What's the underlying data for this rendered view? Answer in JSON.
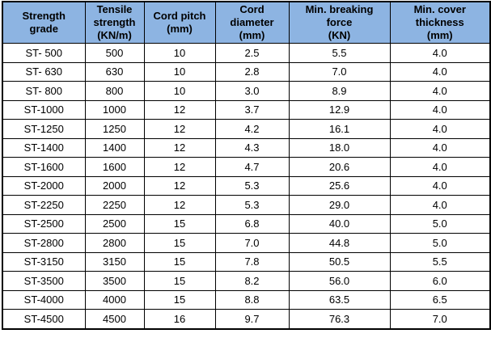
{
  "colors": {
    "header_bg": "#8DB4E2",
    "border": "#000000",
    "text": "#000000",
    "body_bg": "#FFFFFF"
  },
  "table": {
    "columns": [
      "Strength\ngrade",
      "Tensile\nstrength\n(KN/m)",
      "Cord pitch\n(mm)",
      "Cord\ndiameter\n(mm)",
      "Min. breaking\nforce\n(KN)",
      "Min. cover\nthickness\n(mm)"
    ],
    "rows": [
      [
        "ST- 500",
        "500",
        "10",
        "2.5",
        "5.5",
        "4.0"
      ],
      [
        "ST- 630",
        "630",
        "10",
        "2.8",
        "7.0",
        "4.0"
      ],
      [
        "ST- 800",
        "800",
        "10",
        "3.0",
        "8.9",
        "4.0"
      ],
      [
        "ST-1000",
        "1000",
        "12",
        "3.7",
        "12.9",
        "4.0"
      ],
      [
        "ST-1250",
        "1250",
        "12",
        "4.2",
        "16.1",
        "4.0"
      ],
      [
        "ST-1400",
        "1400",
        "12",
        "4.3",
        "18.0",
        "4.0"
      ],
      [
        "ST-1600",
        "1600",
        "12",
        "4.7",
        "20.6",
        "4.0"
      ],
      [
        "ST-2000",
        "2000",
        "12",
        "5.3",
        "25.6",
        "4.0"
      ],
      [
        "ST-2250",
        "2250",
        "12",
        "5.3",
        "29.0",
        "4.0"
      ],
      [
        "ST-2500",
        "2500",
        "15",
        "6.8",
        "40.0",
        "5.0"
      ],
      [
        "ST-2800",
        "2800",
        "15",
        "7.0",
        "44.8",
        "5.0"
      ],
      [
        "ST-3150",
        "3150",
        "15",
        "7.8",
        "50.5",
        "5.5"
      ],
      [
        "ST-3500",
        "3500",
        "15",
        "8.2",
        "56.0",
        "6.0"
      ],
      [
        "ST-4000",
        "4000",
        "15",
        "8.8",
        "63.5",
        "6.5"
      ],
      [
        "ST-4500",
        "4500",
        "16",
        "9.7",
        "76.3",
        "7.0"
      ]
    ]
  },
  "chart_data": {
    "type": "table",
    "title": "",
    "columns": [
      "Strength grade",
      "Tensile strength (KN/m)",
      "Cord pitch (mm)",
      "Cord diameter (mm)",
      "Min. breaking force (KN)",
      "Min. cover thickness (mm)"
    ],
    "rows": [
      [
        "ST- 500",
        500,
        10,
        2.5,
        5.5,
        4.0
      ],
      [
        "ST- 630",
        630,
        10,
        2.8,
        7.0,
        4.0
      ],
      [
        "ST- 800",
        800,
        10,
        3.0,
        8.9,
        4.0
      ],
      [
        "ST-1000",
        1000,
        12,
        3.7,
        12.9,
        4.0
      ],
      [
        "ST-1250",
        1250,
        12,
        4.2,
        16.1,
        4.0
      ],
      [
        "ST-1400",
        1400,
        12,
        4.3,
        18.0,
        4.0
      ],
      [
        "ST-1600",
        1600,
        12,
        4.7,
        20.6,
        4.0
      ],
      [
        "ST-2000",
        2000,
        12,
        5.3,
        25.6,
        4.0
      ],
      [
        "ST-2250",
        2250,
        12,
        5.3,
        29.0,
        4.0
      ],
      [
        "ST-2500",
        2500,
        15,
        6.8,
        40.0,
        5.0
      ],
      [
        "ST-2800",
        2800,
        15,
        7.0,
        44.8,
        5.0
      ],
      [
        "ST-3150",
        3150,
        15,
        7.8,
        50.5,
        5.5
      ],
      [
        "ST-3500",
        3500,
        15,
        8.2,
        56.0,
        6.0
      ],
      [
        "ST-4000",
        4000,
        15,
        8.8,
        63.5,
        6.5
      ],
      [
        "ST-4500",
        4500,
        16,
        9.7,
        76.3,
        7.0
      ]
    ]
  }
}
